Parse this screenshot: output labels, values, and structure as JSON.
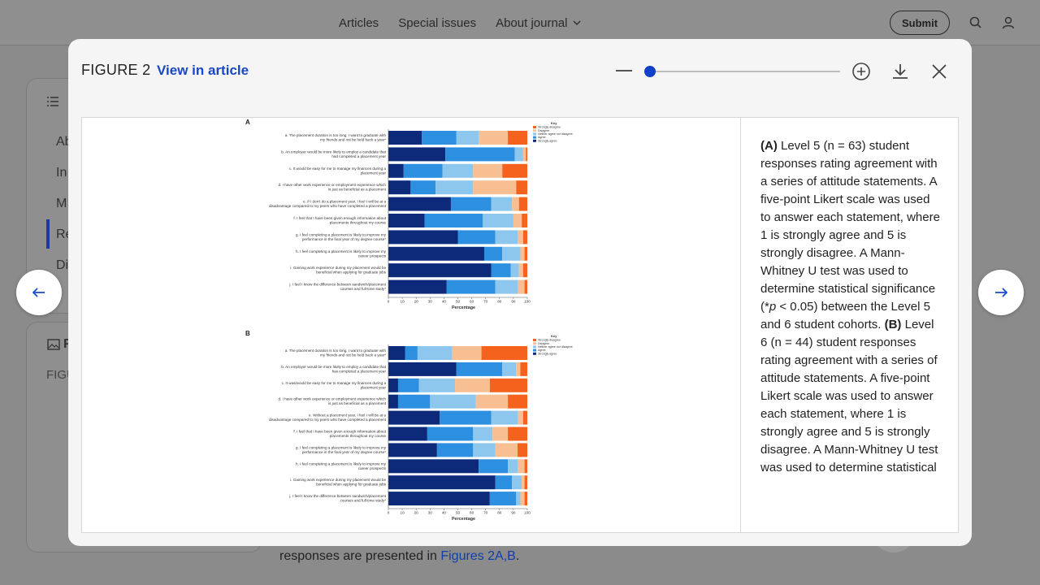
{
  "header": {
    "nav": [
      "Articles",
      "Special issues",
      "About journal"
    ],
    "submit_label": "Submit",
    "icons": [
      "chevron-down-icon",
      "search-icon",
      "user-icon"
    ]
  },
  "background": {
    "sidebar_items": [
      "Ab",
      "In",
      "M",
      "Re",
      "Di"
    ],
    "figures_label": "F",
    "figure_prefix": "FIGU",
    "body_text": "responses are presented in ",
    "body_link": "Figures 2A,B",
    "body_end": "."
  },
  "modal": {
    "title": "FIGURE 2",
    "view_link": "View in article",
    "zoom": {
      "level": 0,
      "min": 0,
      "max": 1
    }
  },
  "caption": {
    "part_a_label": "(A)",
    "part_a_text1": " Level 5 (n = 63) student responses rating agreement with a series of attitude statements. A five-point Likert scale was used to answer each statement, where 1 is strongly agree and 5 is strongly disagree. A Mann-Whitney U test was used to determine statistical significance (*",
    "p_symbol": "p",
    "part_a_text2": " < 0.05) between the Level 5 and 6 student cohorts. ",
    "part_b_label": "(B)",
    "part_b_text": " Level 6 (n = 44) student responses rating agreement with a series of attitude statements. A five-point Likert scale was used to answer each statement, where 1 is strongly agree and 5 is strongly disagree. A Mann-Whitney U test was used to determine statistical"
  },
  "chart_data": [
    {
      "type": "bar",
      "panel": "A",
      "orientation": "horizontal-stacked",
      "xlabel": "Percentage",
      "xlim": [
        0,
        100
      ],
      "xticks": [
        0,
        10,
        20,
        30,
        40,
        50,
        60,
        70,
        80,
        90,
        100
      ],
      "legend_title": "Key",
      "legend": [
        "Strongly disagree",
        "Disagree",
        "Neither agree nor disagree",
        "Agree",
        "Strongly agree"
      ],
      "colors": [
        "#f4621e",
        "#f7bf92",
        "#8ec7ee",
        "#2d8fe0",
        "#0d2a7a"
      ],
      "categories": [
        "a. The placement duration is too long. I want to graduate with my friends and not be held back a year*",
        "b. An employer would be more likely to employ a candidate that had completed a placement year",
        "c. It would be easy for me to manage my finances during a placement year",
        "d. I have other work experience or employment experience which is just as beneficial as a placement",
        "e. If I don't do a placement year, I feel I will be at a disadvantage compared to my peers who have completed a placement",
        "f. I feel that I have been given enough information about placements throughout my course",
        "g. I feel completing a placement is likely to improve my performance in the final year of my degree course*",
        "h. I feel completing a placement is likely to improve my career prospects",
        "i. Gaining work experience during my placement would be beneficial when applying for graduate jobs",
        "j. I feel I know the difference between sandwich/placement courses and full-time study*"
      ],
      "series": [
        {
          "name": "Strongly agree",
          "values": [
            24,
            41,
            11,
            16,
            45,
            26,
            50,
            69,
            74,
            42
          ]
        },
        {
          "name": "Agree",
          "values": [
            25,
            50,
            28,
            18,
            29,
            42,
            27,
            13,
            14,
            35
          ]
        },
        {
          "name": "Neither agree nor disagree",
          "values": [
            16,
            6,
            22,
            27,
            15,
            22,
            16,
            13,
            6,
            16
          ]
        },
        {
          "name": "Disagree",
          "values": [
            21,
            2,
            21,
            31,
            5,
            6,
            4,
            3,
            3,
            5
          ]
        },
        {
          "name": "Strongly disagree",
          "values": [
            14,
            1,
            18,
            8,
            6,
            4,
            3,
            2,
            3,
            2
          ]
        }
      ]
    },
    {
      "type": "bar",
      "panel": "B",
      "orientation": "horizontal-stacked",
      "xlabel": "Percentage",
      "xlim": [
        0,
        100
      ],
      "xticks": [
        0,
        10,
        20,
        30,
        40,
        50,
        60,
        70,
        80,
        90,
        100
      ],
      "legend_title": "Key",
      "legend": [
        "Strongly disagree",
        "Disagree",
        "Neither agree nor disagree",
        "Agree",
        "Strongly agree"
      ],
      "colors": [
        "#f4621e",
        "#f7bf92",
        "#8ec7ee",
        "#2d8fe0",
        "#0d2a7a"
      ],
      "categories": [
        "a. The placement duration is too long. I want to graduate with my friends and not be held back a year*",
        "b. An employer would be more likely to employ a candidate that has completed a placement year",
        "c. It was/would be easy for me to manage my finances during a placement year",
        "d. I have other work experience or employment experience which is just as beneficial as a placement",
        "e. Without a placement year, I feel I will be at a disadvantage compared to my peers who have completed a placement",
        "f. I feel that I have been given enough information about placements throughout my course",
        "g. I feel completing a placement is likely to improve my performance in the final year of my degree course*",
        "h. I feel completing a placement is likely to improve my career prospects",
        "i. Gaining work experience during my placement would be beneficial when applying for graduate jobs",
        "j. I feel I know the difference between sandwich/placement courses and full-time study*"
      ],
      "series": [
        {
          "name": "Strongly agree",
          "values": [
            12,
            49,
            7,
            7,
            37,
            28,
            35,
            65,
            77,
            73
          ]
        },
        {
          "name": "Agree",
          "values": [
            9,
            33,
            15,
            23,
            37,
            33,
            26,
            21,
            12,
            19
          ]
        },
        {
          "name": "Neither agree nor disagree",
          "values": [
            25,
            10,
            26,
            33,
            19,
            14,
            16,
            7,
            7,
            3
          ]
        },
        {
          "name": "Disagree",
          "values": [
            21,
            3,
            25,
            23,
            4,
            11,
            16,
            5,
            2,
            3
          ]
        },
        {
          "name": "Strongly disagree",
          "values": [
            33,
            5,
            27,
            14,
            3,
            14,
            7,
            2,
            2,
            2
          ]
        }
      ]
    }
  ]
}
